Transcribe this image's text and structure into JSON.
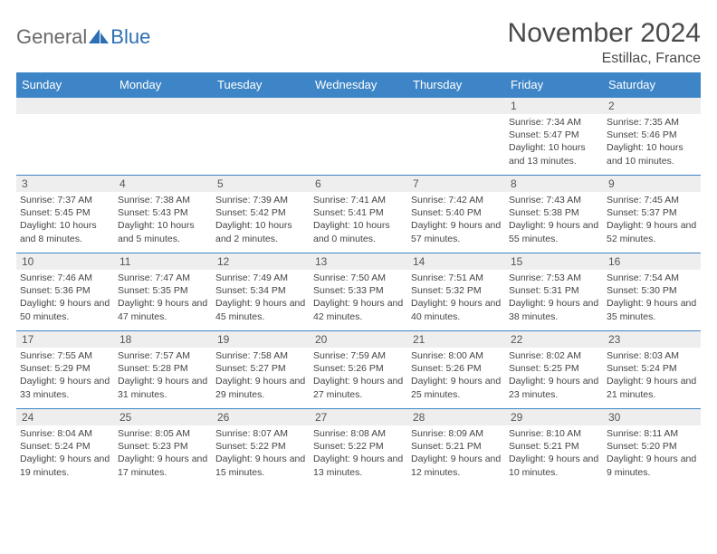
{
  "brand": {
    "part1": "General",
    "part2": "Blue"
  },
  "title": "November 2024",
  "location": "Estillac, France",
  "colors": {
    "header_bg": "#3d85c6",
    "header_text": "#ffffff",
    "row_border": "#3d85c6",
    "daynum_bg": "#eeeeee",
    "logo_gray": "#6a6a6a",
    "logo_blue": "#2d6fb5"
  },
  "day_names": [
    "Sunday",
    "Monday",
    "Tuesday",
    "Wednesday",
    "Thursday",
    "Friday",
    "Saturday"
  ],
  "weeks": [
    [
      null,
      null,
      null,
      null,
      null,
      {
        "n": "1",
        "sr": "7:34 AM",
        "ss": "5:47 PM",
        "dl": "10 hours and 13 minutes."
      },
      {
        "n": "2",
        "sr": "7:35 AM",
        "ss": "5:46 PM",
        "dl": "10 hours and 10 minutes."
      }
    ],
    [
      {
        "n": "3",
        "sr": "7:37 AM",
        "ss": "5:45 PM",
        "dl": "10 hours and 8 minutes."
      },
      {
        "n": "4",
        "sr": "7:38 AM",
        "ss": "5:43 PM",
        "dl": "10 hours and 5 minutes."
      },
      {
        "n": "5",
        "sr": "7:39 AM",
        "ss": "5:42 PM",
        "dl": "10 hours and 2 minutes."
      },
      {
        "n": "6",
        "sr": "7:41 AM",
        "ss": "5:41 PM",
        "dl": "10 hours and 0 minutes."
      },
      {
        "n": "7",
        "sr": "7:42 AM",
        "ss": "5:40 PM",
        "dl": "9 hours and 57 minutes."
      },
      {
        "n": "8",
        "sr": "7:43 AM",
        "ss": "5:38 PM",
        "dl": "9 hours and 55 minutes."
      },
      {
        "n": "9",
        "sr": "7:45 AM",
        "ss": "5:37 PM",
        "dl": "9 hours and 52 minutes."
      }
    ],
    [
      {
        "n": "10",
        "sr": "7:46 AM",
        "ss": "5:36 PM",
        "dl": "9 hours and 50 minutes."
      },
      {
        "n": "11",
        "sr": "7:47 AM",
        "ss": "5:35 PM",
        "dl": "9 hours and 47 minutes."
      },
      {
        "n": "12",
        "sr": "7:49 AM",
        "ss": "5:34 PM",
        "dl": "9 hours and 45 minutes."
      },
      {
        "n": "13",
        "sr": "7:50 AM",
        "ss": "5:33 PM",
        "dl": "9 hours and 42 minutes."
      },
      {
        "n": "14",
        "sr": "7:51 AM",
        "ss": "5:32 PM",
        "dl": "9 hours and 40 minutes."
      },
      {
        "n": "15",
        "sr": "7:53 AM",
        "ss": "5:31 PM",
        "dl": "9 hours and 38 minutes."
      },
      {
        "n": "16",
        "sr": "7:54 AM",
        "ss": "5:30 PM",
        "dl": "9 hours and 35 minutes."
      }
    ],
    [
      {
        "n": "17",
        "sr": "7:55 AM",
        "ss": "5:29 PM",
        "dl": "9 hours and 33 minutes."
      },
      {
        "n": "18",
        "sr": "7:57 AM",
        "ss": "5:28 PM",
        "dl": "9 hours and 31 minutes."
      },
      {
        "n": "19",
        "sr": "7:58 AM",
        "ss": "5:27 PM",
        "dl": "9 hours and 29 minutes."
      },
      {
        "n": "20",
        "sr": "7:59 AM",
        "ss": "5:26 PM",
        "dl": "9 hours and 27 minutes."
      },
      {
        "n": "21",
        "sr": "8:00 AM",
        "ss": "5:26 PM",
        "dl": "9 hours and 25 minutes."
      },
      {
        "n": "22",
        "sr": "8:02 AM",
        "ss": "5:25 PM",
        "dl": "9 hours and 23 minutes."
      },
      {
        "n": "23",
        "sr": "8:03 AM",
        "ss": "5:24 PM",
        "dl": "9 hours and 21 minutes."
      }
    ],
    [
      {
        "n": "24",
        "sr": "8:04 AM",
        "ss": "5:24 PM",
        "dl": "9 hours and 19 minutes."
      },
      {
        "n": "25",
        "sr": "8:05 AM",
        "ss": "5:23 PM",
        "dl": "9 hours and 17 minutes."
      },
      {
        "n": "26",
        "sr": "8:07 AM",
        "ss": "5:22 PM",
        "dl": "9 hours and 15 minutes."
      },
      {
        "n": "27",
        "sr": "8:08 AM",
        "ss": "5:22 PM",
        "dl": "9 hours and 13 minutes."
      },
      {
        "n": "28",
        "sr": "8:09 AM",
        "ss": "5:21 PM",
        "dl": "9 hours and 12 minutes."
      },
      {
        "n": "29",
        "sr": "8:10 AM",
        "ss": "5:21 PM",
        "dl": "9 hours and 10 minutes."
      },
      {
        "n": "30",
        "sr": "8:11 AM",
        "ss": "5:20 PM",
        "dl": "9 hours and 9 minutes."
      }
    ]
  ],
  "labels": {
    "sunrise": "Sunrise: ",
    "sunset": "Sunset: ",
    "daylight": "Daylight: "
  }
}
